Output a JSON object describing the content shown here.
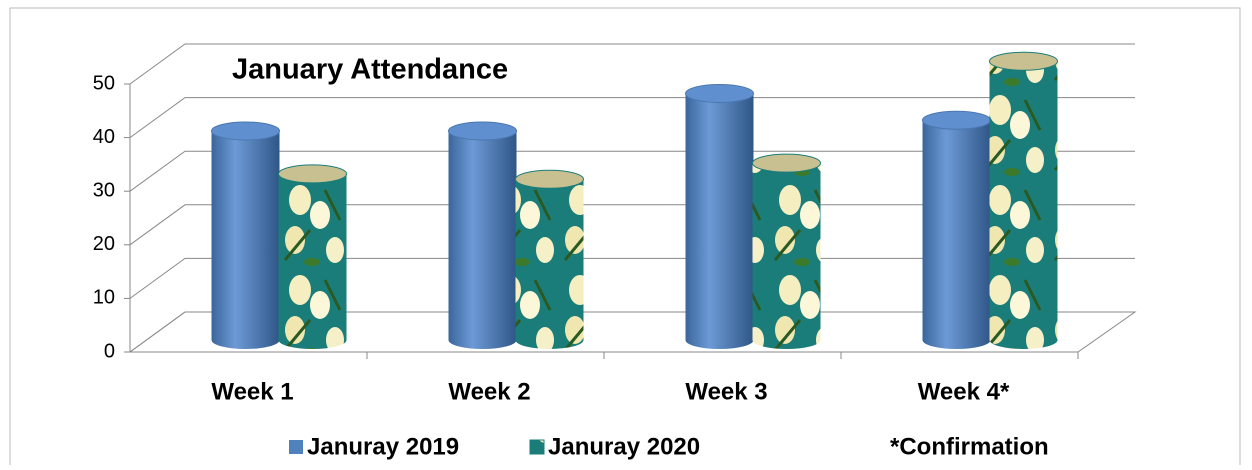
{
  "chart_data": {
    "type": "bar",
    "title": "January Attendance",
    "categories": [
      "Week 1",
      "Week 2",
      "Week 3",
      "Week 4*"
    ],
    "series": [
      {
        "name": "Januray 2019",
        "color": "#4f81bd",
        "values": [
          39,
          39,
          46,
          41
        ]
      },
      {
        "name": "Januray 2020",
        "color": "#1b7d7a",
        "values": [
          31,
          30,
          33,
          52
        ]
      }
    ],
    "annotation": "*Confirmation",
    "ylim": [
      0,
      50
    ],
    "yticks": [
      0,
      10,
      20,
      30,
      40,
      50
    ],
    "grid": true
  }
}
